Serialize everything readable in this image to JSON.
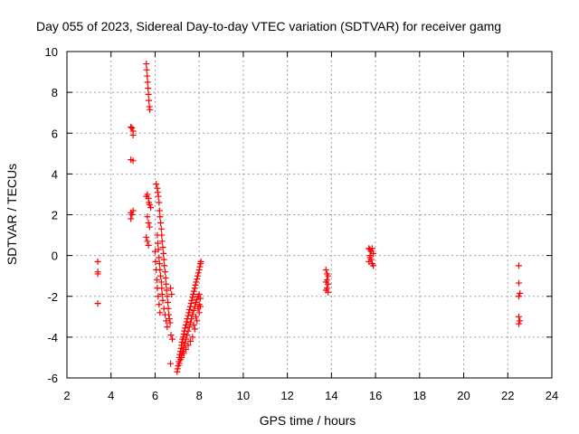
{
  "chart_data": {
    "type": "scatter",
    "title": "Day 055 of 2023, Sidereal Day-to-day VTEC variation (SDTVAR) for receiver gamg",
    "xlabel": "GPS time / hours",
    "ylabel": "SDTVAR / TECUs",
    "xlim": [
      2,
      24
    ],
    "ylim": [
      -6,
      10
    ],
    "xticks": [
      2,
      4,
      6,
      8,
      10,
      12,
      14,
      16,
      18,
      20,
      22,
      24
    ],
    "yticks": [
      -6,
      -4,
      -2,
      0,
      2,
      4,
      6,
      8,
      10
    ],
    "grid": true,
    "marker": "+",
    "color": "#ff0000",
    "series": [
      {
        "name": "SDTVAR",
        "points": [
          [
            3.4,
            -0.3
          ],
          [
            3.4,
            -0.8
          ],
          [
            3.4,
            -0.9
          ],
          [
            3.4,
            -2.35
          ],
          [
            4.9,
            6.3
          ],
          [
            4.95,
            6.25
          ],
          [
            5.0,
            6.1
          ],
          [
            5.0,
            5.9
          ],
          [
            4.9,
            4.7
          ],
          [
            5.0,
            4.65
          ],
          [
            4.9,
            2.1
          ],
          [
            4.95,
            2.0
          ],
          [
            5.0,
            2.2
          ],
          [
            4.9,
            1.8
          ],
          [
            5.6,
            9.4
          ],
          [
            5.62,
            9.1
          ],
          [
            5.64,
            8.8
          ],
          [
            5.66,
            8.5
          ],
          [
            5.68,
            8.2
          ],
          [
            5.7,
            7.9
          ],
          [
            5.72,
            7.6
          ],
          [
            5.74,
            7.3
          ],
          [
            5.76,
            7.15
          ],
          [
            5.65,
            3.0
          ],
          [
            5.7,
            2.8
          ],
          [
            5.72,
            2.6
          ],
          [
            5.75,
            2.5
          ],
          [
            5.8,
            2.35
          ],
          [
            5.6,
            2.9
          ],
          [
            5.65,
            1.9
          ],
          [
            5.7,
            1.6
          ],
          [
            5.75,
            1.4
          ],
          [
            5.6,
            0.9
          ],
          [
            5.65,
            0.7
          ],
          [
            5.7,
            0.5
          ],
          [
            6.05,
            3.5
          ],
          [
            6.1,
            3.3
          ],
          [
            6.12,
            3.1
          ],
          [
            6.15,
            2.9
          ],
          [
            6.18,
            2.6
          ],
          [
            6.2,
            2.2
          ],
          [
            6.22,
            1.9
          ],
          [
            6.25,
            1.6
          ],
          [
            6.28,
            1.3
          ],
          [
            6.3,
            1.0
          ],
          [
            6.32,
            0.7
          ],
          [
            6.35,
            0.4
          ],
          [
            6.38,
            0.1
          ],
          [
            6.4,
            -0.2
          ],
          [
            6.42,
            -0.5
          ],
          [
            6.45,
            -0.8
          ],
          [
            6.48,
            -1.1
          ],
          [
            6.5,
            -1.4
          ],
          [
            6.52,
            -1.7
          ],
          [
            6.55,
            -2.0
          ],
          [
            6.58,
            -2.3
          ],
          [
            6.6,
            -2.6
          ],
          [
            6.62,
            -2.9
          ],
          [
            6.65,
            -3.1
          ],
          [
            6.68,
            -3.3
          ],
          [
            6.1,
            1.0
          ],
          [
            6.12,
            0.6
          ],
          [
            6.15,
            0.3
          ],
          [
            6.18,
            -0.1
          ],
          [
            6.2,
            -0.4
          ],
          [
            6.22,
            -0.7
          ],
          [
            6.25,
            -1.0
          ],
          [
            6.28,
            -1.3
          ],
          [
            6.3,
            -1.6
          ],
          [
            6.32,
            -1.9
          ],
          [
            6.35,
            -2.2
          ],
          [
            6.4,
            -2.6
          ],
          [
            6.45,
            -2.9
          ],
          [
            6.5,
            -3.2
          ],
          [
            6.55,
            -3.5
          ],
          [
            6.0,
            0.2
          ],
          [
            6.02,
            -0.3
          ],
          [
            6.05,
            -0.7
          ],
          [
            6.08,
            -1.2
          ],
          [
            6.1,
            -1.6
          ],
          [
            6.14,
            -2.0
          ],
          [
            6.18,
            -2.4
          ],
          [
            6.22,
            -2.8
          ],
          [
            6.7,
            -1.6
          ],
          [
            6.75,
            -1.9
          ],
          [
            6.72,
            -3.9
          ],
          [
            6.78,
            -4.1
          ],
          [
            6.7,
            -5.3
          ],
          [
            7.0,
            -5.7
          ],
          [
            7.02,
            -5.55
          ],
          [
            7.05,
            -5.4
          ],
          [
            7.08,
            -5.2
          ],
          [
            7.1,
            -5.0
          ],
          [
            7.12,
            -4.85
          ],
          [
            7.15,
            -4.7
          ],
          [
            7.18,
            -4.55
          ],
          [
            7.2,
            -4.4
          ],
          [
            7.22,
            -4.25
          ],
          [
            7.25,
            -4.1
          ],
          [
            7.28,
            -4.0
          ],
          [
            7.3,
            -3.85
          ],
          [
            7.33,
            -3.7
          ],
          [
            7.36,
            -3.55
          ],
          [
            7.4,
            -3.4
          ],
          [
            7.43,
            -3.25
          ],
          [
            7.46,
            -3.1
          ],
          [
            7.5,
            -2.95
          ],
          [
            7.53,
            -2.8
          ],
          [
            7.56,
            -2.65
          ],
          [
            7.6,
            -2.5
          ],
          [
            7.63,
            -2.35
          ],
          [
            7.66,
            -2.2
          ],
          [
            7.7,
            -2.05
          ],
          [
            7.73,
            -1.9
          ],
          [
            7.76,
            -1.75
          ],
          [
            7.8,
            -1.6
          ],
          [
            7.83,
            -1.45
          ],
          [
            7.86,
            -1.3
          ],
          [
            7.9,
            -1.15
          ],
          [
            7.93,
            -1.0
          ],
          [
            7.96,
            -0.85
          ],
          [
            8.0,
            -0.7
          ],
          [
            8.03,
            -0.55
          ],
          [
            8.06,
            -0.4
          ],
          [
            8.08,
            -0.3
          ],
          [
            7.1,
            -5.3
          ],
          [
            7.15,
            -5.1
          ],
          [
            7.2,
            -4.9
          ],
          [
            7.25,
            -4.7
          ],
          [
            7.3,
            -4.5
          ],
          [
            7.35,
            -4.3
          ],
          [
            7.4,
            -4.1
          ],
          [
            7.45,
            -3.9
          ],
          [
            7.5,
            -3.7
          ],
          [
            7.55,
            -3.5
          ],
          [
            7.6,
            -3.3
          ],
          [
            7.65,
            -3.1
          ],
          [
            7.7,
            -2.9
          ],
          [
            7.75,
            -2.7
          ],
          [
            7.8,
            -2.5
          ],
          [
            7.85,
            -2.3
          ],
          [
            7.9,
            -2.15
          ],
          [
            7.95,
            -2.0
          ],
          [
            8.0,
            -1.9
          ],
          [
            8.05,
            -2.1
          ],
          [
            7.2,
            -5.0
          ],
          [
            7.3,
            -4.8
          ],
          [
            7.4,
            -4.6
          ],
          [
            7.5,
            -4.4
          ],
          [
            7.6,
            -4.2
          ],
          [
            7.7,
            -4.0
          ],
          [
            7.8,
            -3.6
          ],
          [
            7.9,
            -3.2
          ],
          [
            8.0,
            -2.8
          ],
          [
            8.05,
            -2.5
          ],
          [
            8.0,
            -2.4
          ],
          [
            7.95,
            -2.6
          ],
          [
            7.85,
            -3.0
          ],
          [
            7.75,
            -3.4
          ],
          [
            13.75,
            -0.7
          ],
          [
            13.8,
            -0.9
          ],
          [
            13.85,
            -1.0
          ],
          [
            13.8,
            -1.2
          ],
          [
            13.75,
            -1.3
          ],
          [
            13.85,
            -1.4
          ],
          [
            13.8,
            -1.6
          ],
          [
            13.75,
            -1.7
          ],
          [
            13.85,
            -1.8
          ],
          [
            15.7,
            0.35
          ],
          [
            15.75,
            0.3
          ],
          [
            15.8,
            0.2
          ],
          [
            15.85,
            0.35
          ],
          [
            15.9,
            0.1
          ],
          [
            15.75,
            -0.1
          ],
          [
            15.8,
            -0.2
          ],
          [
            15.7,
            -0.3
          ],
          [
            15.85,
            -0.4
          ],
          [
            15.9,
            -0.5
          ],
          [
            15.75,
            0.0
          ],
          [
            22.5,
            -0.5
          ],
          [
            22.5,
            -1.35
          ],
          [
            22.55,
            -1.85
          ],
          [
            22.5,
            -2.0
          ],
          [
            22.5,
            -3.0
          ],
          [
            22.55,
            -3.2
          ],
          [
            22.5,
            -3.35
          ]
        ]
      }
    ]
  }
}
